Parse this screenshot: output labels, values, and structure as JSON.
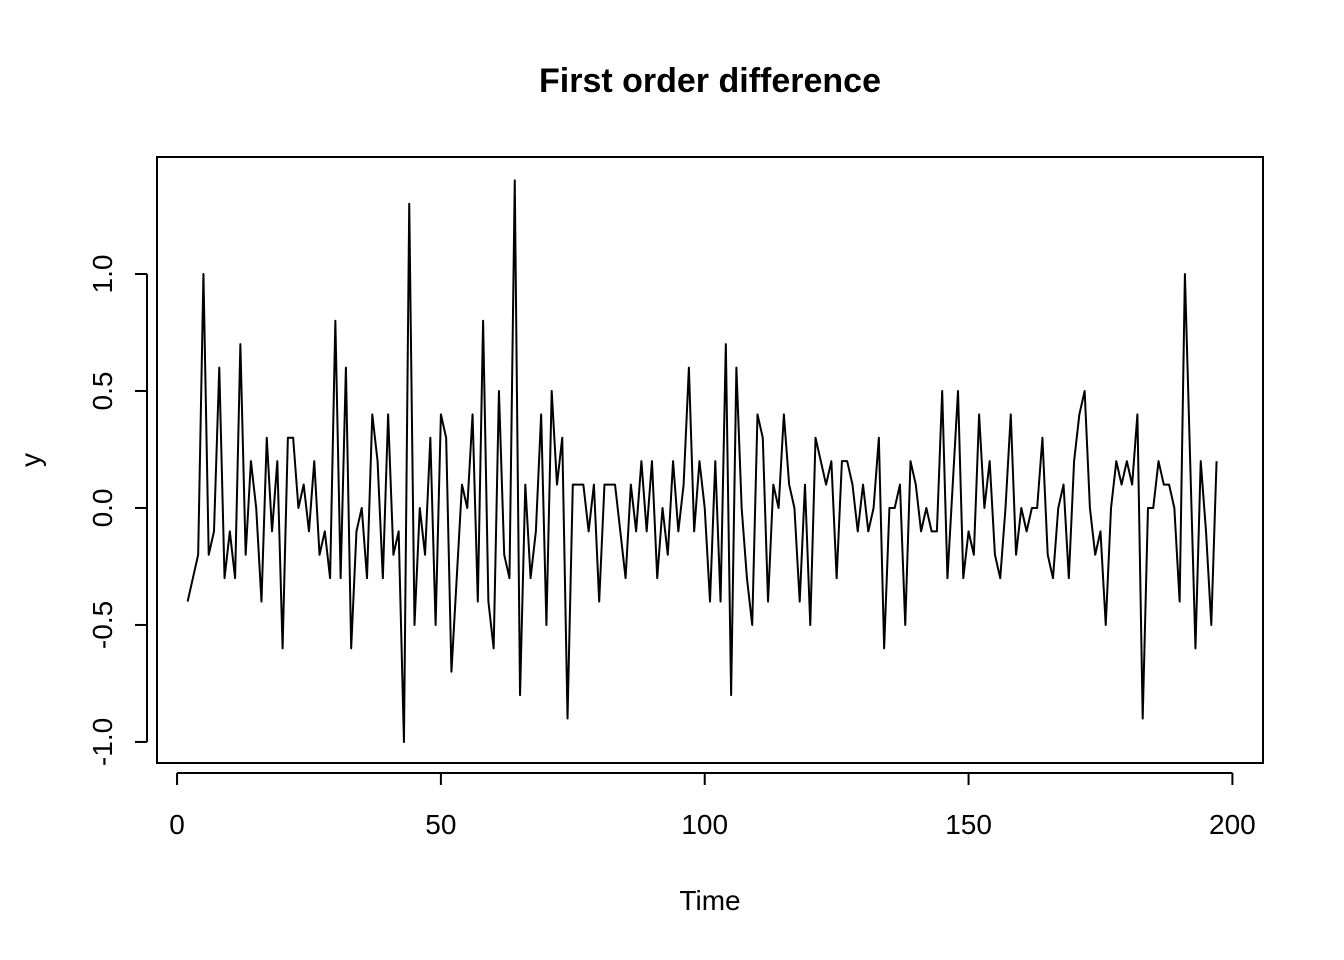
{
  "chart_data": {
    "type": "line",
    "title": "First order difference",
    "xlabel": "Time",
    "ylabel": "y",
    "xlim": [
      -3.8,
      205.8
    ],
    "ylim": [
      -1.09,
      1.5
    ],
    "x_ticks": [
      0,
      50,
      100,
      150,
      200
    ],
    "x_tick_labels": [
      "0",
      "50",
      "100",
      "150",
      "200"
    ],
    "y_ticks": [
      -1.0,
      -0.5,
      0.0,
      0.5,
      1.0
    ],
    "y_tick_labels": [
      "-1.0",
      "-0.5",
      "0.0",
      "0.5",
      "1.0"
    ],
    "grid": false,
    "line_color": "#000000",
    "x_start": 2,
    "values": [
      -0.4,
      -0.3,
      -0.2,
      1.0,
      -0.2,
      -0.1,
      0.6,
      -0.3,
      -0.1,
      -0.3,
      0.7,
      -0.2,
      0.2,
      0.0,
      -0.4,
      0.3,
      -0.1,
      0.2,
      -0.6,
      0.3,
      0.3,
      0.0,
      0.1,
      -0.1,
      0.2,
      -0.2,
      -0.1,
      -0.3,
      0.8,
      -0.3,
      0.6,
      -0.6,
      -0.1,
      0.0,
      -0.3,
      0.4,
      0.2,
      -0.3,
      0.4,
      -0.2,
      -0.1,
      -1.0,
      1.3,
      -0.5,
      0.0,
      -0.2,
      0.3,
      -0.5,
      0.4,
      0.3,
      -0.7,
      -0.3,
      0.1,
      0.0,
      0.4,
      -0.4,
      0.8,
      -0.4,
      -0.6,
      0.5,
      -0.2,
      -0.3,
      1.4,
      -0.8,
      0.1,
      -0.3,
      -0.1,
      0.4,
      -0.5,
      0.5,
      0.1,
      0.3,
      -0.9,
      0.1,
      0.1,
      0.1,
      -0.1,
      0.1,
      -0.4,
      0.1,
      0.1,
      0.1,
      -0.1,
      -0.3,
      0.1,
      -0.1,
      0.2,
      -0.1,
      0.2,
      -0.3,
      0.0,
      -0.2,
      0.2,
      -0.1,
      0.1,
      0.6,
      -0.1,
      0.2,
      0.0,
      -0.4,
      0.2,
      -0.4,
      0.7,
      -0.8,
      0.6,
      0.0,
      -0.3,
      -0.5,
      0.4,
      0.3,
      -0.4,
      0.1,
      0.0,
      0.4,
      0.1,
      0.0,
      -0.4,
      0.1,
      -0.5,
      0.3,
      0.2,
      0.1,
      0.2,
      -0.3,
      0.2,
      0.2,
      0.1,
      -0.1,
      0.1,
      -0.1,
      0.0,
      0.3,
      -0.6,
      0.0,
      0.0,
      0.1,
      -0.5,
      0.2,
      0.1,
      -0.1,
      0.0,
      -0.1,
      -0.1,
      0.5,
      -0.3,
      0.1,
      0.5,
      -0.3,
      -0.1,
      -0.2,
      0.4,
      0.0,
      0.2,
      -0.2,
      -0.3,
      0.0,
      0.4,
      -0.2,
      0.0,
      -0.1,
      0.0,
      0.0,
      0.3,
      -0.2,
      -0.3,
      0.0,
      0.1,
      -0.3,
      0.2,
      0.4,
      0.5,
      0.0,
      -0.2,
      -0.1,
      -0.5,
      0.0,
      0.2,
      0.1,
      0.2,
      0.1,
      0.4,
      -0.9,
      0.0,
      0.0,
      0.2,
      0.1,
      0.1,
      0.0,
      -0.4,
      1.0,
      0.2,
      -0.6,
      0.2,
      -0.1,
      -0.5,
      0.2
    ]
  }
}
